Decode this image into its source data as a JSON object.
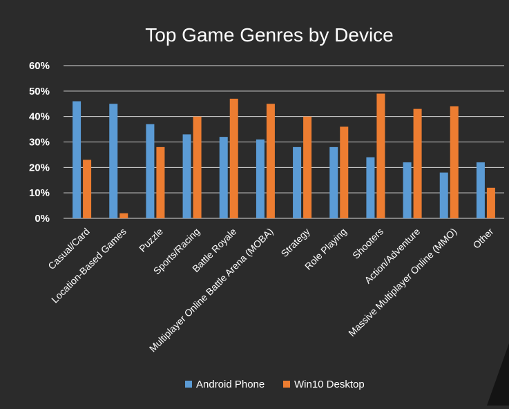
{
  "colors": {
    "background": "#2b2b2b",
    "gridline": "#d9d9d9",
    "text": "#ffffff"
  },
  "chart_data": {
    "type": "bar",
    "title": "Top Game Genres by Device",
    "xlabel": "",
    "ylabel": "",
    "ylim": [
      0,
      60
    ],
    "y_ticks": [
      "0%",
      "10%",
      "20%",
      "30%",
      "40%",
      "50%",
      "60%"
    ],
    "grid": true,
    "legend_position": "bottom",
    "categories": [
      "Casual/Card",
      "Location-Based Games",
      "Puzzle",
      "Sports/Racing",
      "Battle Royale",
      "Multiplayer Online Battle Arena (MOBA)",
      "Strategy",
      "Role Playing",
      "Shooters",
      "Action/Adventure",
      "Massive Multiplayer Online (MMO)",
      "Other"
    ],
    "series": [
      {
        "name": "Android Phone",
        "color": "#5b9bd5",
        "values": [
          46,
          45,
          37,
          33,
          32,
          31,
          28,
          28,
          24,
          22,
          18,
          22
        ]
      },
      {
        "name": "Win10 Desktop",
        "color": "#ed7d31",
        "values": [
          23,
          2,
          28,
          40,
          47,
          45,
          40,
          36,
          49,
          43,
          44,
          12
        ]
      }
    ]
  }
}
